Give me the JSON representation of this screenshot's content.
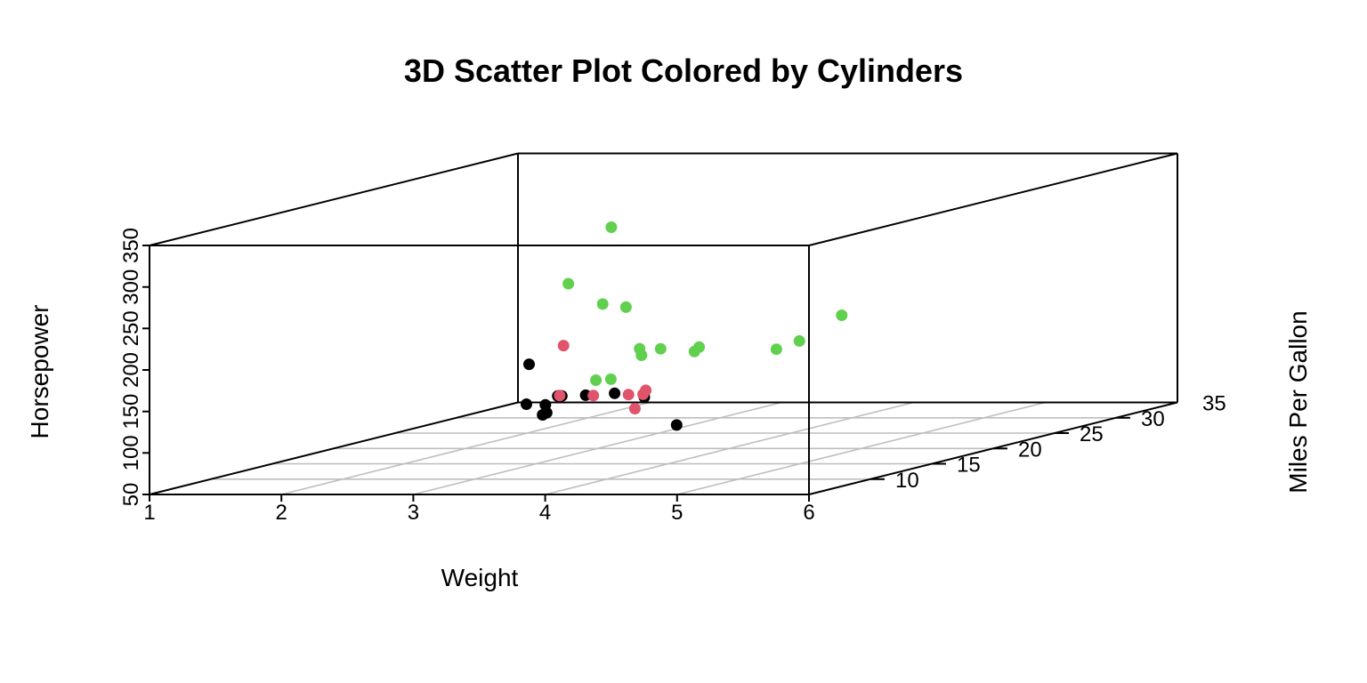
{
  "chart_data": {
    "type": "scatter",
    "title": "3D Scatter Plot Colored by Cylinders",
    "xlabel": "Weight",
    "ylabel": "Horsepower",
    "zlabel": "Miles Per Gallon",
    "x_ticks": [
      "1",
      "2",
      "3",
      "4",
      "5",
      "6"
    ],
    "y_ticks": [
      "50",
      "100",
      "150",
      "200",
      "250",
      "300",
      "350"
    ],
    "z_ticks": [
      "10",
      "15",
      "20",
      "25",
      "30",
      "35"
    ],
    "xlim": [
      1,
      6
    ],
    "ylim": [
      50,
      350
    ],
    "zlim": [
      5,
      35
    ],
    "grid": true,
    "colors": {
      "box": "#000000",
      "grid": "#bebebe",
      "ticklabel": "#000000"
    },
    "series": [
      {
        "color": "#000000",
        "points": [
          {
            "x": 2.2,
            "y": 93,
            "z": 22.8
          },
          {
            "x": 2.32,
            "y": 97,
            "z": 24.4
          },
          {
            "x": 2.2,
            "y": 66,
            "z": 32.4
          },
          {
            "x": 1.615,
            "y": 52,
            "z": 30.4
          },
          {
            "x": 1.835,
            "y": 65,
            "z": 33.9
          },
          {
            "x": 2.465,
            "y": 97,
            "z": 21.5
          },
          {
            "x": 1.935,
            "y": 66,
            "z": 27.3
          },
          {
            "x": 2.14,
            "y": 91,
            "z": 26.0
          },
          {
            "x": 1.513,
            "y": 113,
            "z": 30.4
          },
          {
            "x": 2.78,
            "y": 109,
            "z": 21.4
          },
          {
            "x": 3.19,
            "y": 62,
            "z": 24.4
          }
        ]
      },
      {
        "color": "#df536b",
        "points": [
          {
            "x": 2.62,
            "y": 110,
            "z": 21.0
          },
          {
            "x": 2.875,
            "y": 110,
            "z": 21.0
          },
          {
            "x": 3.215,
            "y": 110,
            "z": 21.4
          },
          {
            "x": 3.46,
            "y": 105,
            "z": 18.1
          },
          {
            "x": 3.44,
            "y": 123,
            "z": 19.2
          },
          {
            "x": 3.44,
            "y": 123,
            "z": 17.8
          },
          {
            "x": 2.77,
            "y": 175,
            "z": 19.7
          }
        ]
      },
      {
        "color": "#61d04f",
        "points": [
          {
            "x": 3.44,
            "y": 175,
            "z": 18.7
          },
          {
            "x": 3.57,
            "y": 245,
            "z": 14.3
          },
          {
            "x": 4.07,
            "y": 180,
            "z": 16.4
          },
          {
            "x": 3.73,
            "y": 180,
            "z": 17.3
          },
          {
            "x": 3.78,
            "y": 180,
            "z": 15.2
          },
          {
            "x": 5.25,
            "y": 205,
            "z": 10.4
          },
          {
            "x": 5.424,
            "y": 215,
            "z": 10.4
          },
          {
            "x": 5.345,
            "y": 230,
            "z": 14.7
          },
          {
            "x": 3.52,
            "y": 150,
            "z": 15.5
          },
          {
            "x": 3.435,
            "y": 150,
            "z": 15.2
          },
          {
            "x": 3.84,
            "y": 245,
            "z": 13.3
          },
          {
            "x": 3.845,
            "y": 175,
            "z": 19.2
          },
          {
            "x": 3.17,
            "y": 264,
            "z": 15.8
          },
          {
            "x": 3.57,
            "y": 335,
            "z": 15.0
          }
        ]
      }
    ]
  }
}
